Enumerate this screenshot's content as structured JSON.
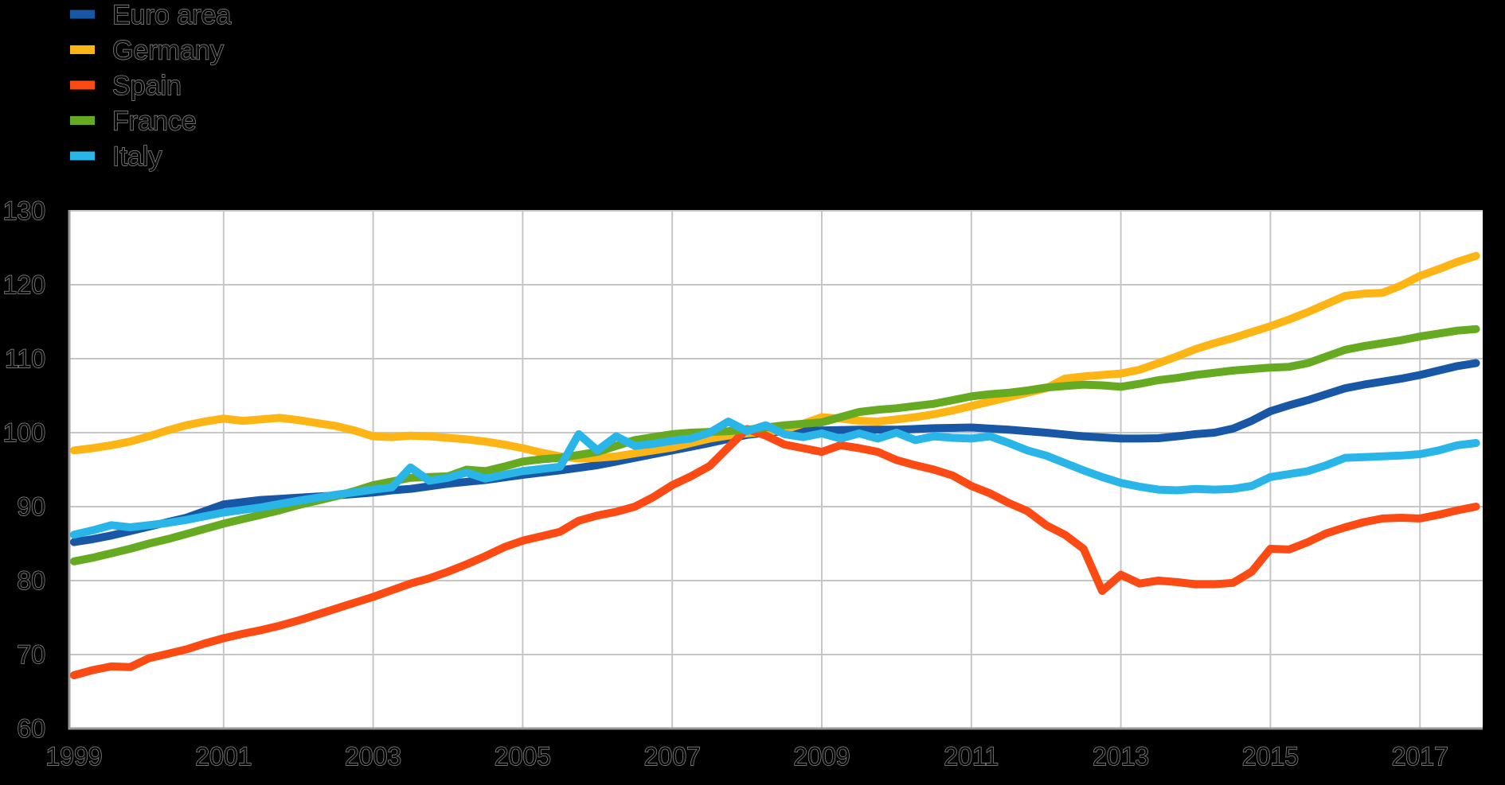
{
  "page": {
    "background": "#000000",
    "plot_background": "#ffffff",
    "gridline_color": "#c6c6c6",
    "axis_color": "#9a9a9a",
    "label_color": "#8f8f8f"
  },
  "legend": {
    "position": "top-left"
  },
  "axes": {
    "y_tick_labels": [
      "130",
      "120",
      "110",
      "100",
      "90",
      "80",
      "70",
      "60"
    ],
    "x_tick_labels": [
      "1999",
      "2001",
      "2003",
      "2005",
      "2007",
      "2009",
      "2011",
      "2013",
      "2015",
      "2017"
    ]
  },
  "chart_data": {
    "type": "line",
    "title": "",
    "xlabel": "",
    "ylabel": "",
    "grid": true,
    "legend_position": "top-left",
    "ylim": [
      60,
      130
    ],
    "y_ticks": [
      130,
      120,
      110,
      100,
      90,
      80,
      70,
      60
    ],
    "x_ticks": [
      1999,
      2001,
      2003,
      2005,
      2007,
      2009,
      2011,
      2013,
      2015,
      2017
    ],
    "x_start": 1999.0,
    "x_step": 0.25,
    "series": [
      {
        "name": "Euro area",
        "color": "#1757a6",
        "values": [
          85.2,
          85.6,
          86.1,
          86.7,
          87.3,
          87.9,
          88.5,
          89.4,
          90.3,
          90.6,
          90.9,
          91.05,
          91.2,
          91.35,
          91.5,
          91.7,
          91.9,
          92.2,
          92.4,
          92.75,
          93.1,
          93.35,
          93.6,
          93.95,
          94.3,
          94.6,
          94.9,
          95.25,
          95.6,
          96.1,
          96.6,
          97.1,
          97.6,
          98.1,
          98.6,
          99.15,
          99.7,
          100.0,
          100.2,
          100.25,
          100.3,
          100.35,
          100.4,
          100.4,
          100.4,
          100.5,
          100.6,
          100.65,
          100.7,
          100.55,
          100.4,
          100.2,
          100.0,
          99.75,
          99.5,
          99.35,
          99.2,
          99.2,
          99.25,
          99.5,
          99.8,
          100.0,
          100.55,
          101.6,
          102.9,
          103.7,
          104.4,
          105.2,
          106.0,
          106.5,
          106.9,
          107.3,
          107.8,
          108.4,
          109.0,
          109.4
        ]
      },
      {
        "name": "Germany",
        "color": "#fdb515",
        "values": [
          97.6,
          97.9,
          98.3,
          98.8,
          99.5,
          100.3,
          101.0,
          101.5,
          101.9,
          101.6,
          101.8,
          102.0,
          101.7,
          101.3,
          100.9,
          100.3,
          99.5,
          99.4,
          99.6,
          99.5,
          99.3,
          99.1,
          98.8,
          98.4,
          97.9,
          97.3,
          96.8,
          96.5,
          96.6,
          96.8,
          97.2,
          97.6,
          98.0,
          98.6,
          99.2,
          99.6,
          99.9,
          100.1,
          100.4,
          101.2,
          102.1,
          101.9,
          101.6,
          101.5,
          101.8,
          102.1,
          102.5,
          103.0,
          103.6,
          104.2,
          104.8,
          105.4,
          106.0,
          107.3,
          107.6,
          107.8,
          108.0,
          108.5,
          109.4,
          110.3,
          111.3,
          112.1,
          112.8,
          113.6,
          114.4,
          115.3,
          116.3,
          117.4,
          118.5,
          118.8,
          118.9,
          119.9,
          121.2,
          122.1,
          123.1,
          123.9
        ]
      },
      {
        "name": "Spain",
        "color": "#fb4a13",
        "values": [
          67.2,
          67.9,
          68.4,
          68.3,
          69.5,
          70.1,
          70.7,
          71.5,
          72.2,
          72.8,
          73.3,
          73.9,
          74.6,
          75.4,
          76.2,
          77.0,
          77.8,
          78.7,
          79.6,
          80.3,
          81.2,
          82.2,
          83.3,
          84.5,
          85.4,
          86.0,
          86.6,
          88.1,
          88.8,
          89.3,
          90.0,
          91.3,
          92.9,
          94.1,
          95.5,
          98.0,
          100.5,
          99.6,
          98.4,
          97.9,
          97.4,
          98.3,
          97.9,
          97.4,
          96.3,
          95.6,
          95.0,
          94.2,
          92.8,
          91.8,
          90.5,
          89.4,
          87.5,
          86.2,
          84.3,
          78.6,
          80.8,
          79.6,
          80.0,
          79.8,
          79.5,
          79.5,
          79.7,
          81.2,
          84.3,
          84.2,
          85.2,
          86.4,
          87.2,
          87.9,
          88.4,
          88.5,
          88.4,
          88.9,
          89.5,
          90.0
        ]
      },
      {
        "name": "France",
        "color": "#66aa22",
        "values": [
          82.6,
          83.1,
          83.7,
          84.3,
          85.0,
          85.6,
          86.3,
          87.0,
          87.7,
          88.3,
          88.9,
          89.5,
          90.2,
          90.8,
          91.4,
          92.1,
          92.9,
          93.4,
          93.9,
          94.0,
          94.1,
          95.0,
          94.8,
          95.4,
          96.1,
          96.4,
          96.6,
          97.0,
          97.4,
          98.2,
          99.0,
          99.4,
          99.8,
          100.0,
          100.1,
          100.2,
          100.4,
          100.7,
          101.0,
          101.2,
          101.4,
          102.1,
          102.8,
          103.1,
          103.3,
          103.6,
          103.9,
          104.4,
          104.9,
          105.2,
          105.4,
          105.7,
          106.1,
          106.3,
          106.5,
          106.4,
          106.2,
          106.6,
          107.1,
          107.4,
          107.8,
          108.1,
          108.4,
          108.6,
          108.8,
          108.9,
          109.4,
          110.3,
          111.2,
          111.7,
          112.1,
          112.5,
          113.0,
          113.4,
          113.8,
          114.0
        ]
      },
      {
        "name": "Italy",
        "color": "#29b5e8",
        "values": [
          86.2,
          86.8,
          87.5,
          87.2,
          87.5,
          87.8,
          88.2,
          88.7,
          89.2,
          89.55,
          89.9,
          90.35,
          90.8,
          91.2,
          91.6,
          91.95,
          92.3,
          92.6,
          95.3,
          93.5,
          93.9,
          94.6,
          93.8,
          94.3,
          94.8,
          95.1,
          95.4,
          99.8,
          97.6,
          99.5,
          98.2,
          98.5,
          98.9,
          99.2,
          100.0,
          101.5,
          100.2,
          101.0,
          99.8,
          99.4,
          99.9,
          99.2,
          99.9,
          99.2,
          100.0,
          99.0,
          99.5,
          99.3,
          99.2,
          99.5,
          98.6,
          97.6,
          96.9,
          95.9,
          94.9,
          94.0,
          93.2,
          92.7,
          92.3,
          92.2,
          92.4,
          92.3,
          92.4,
          92.8,
          94.0,
          94.4,
          94.8,
          95.6,
          96.6,
          96.7,
          96.8,
          96.9,
          97.1,
          97.6,
          98.3,
          98.6
        ]
      }
    ]
  }
}
